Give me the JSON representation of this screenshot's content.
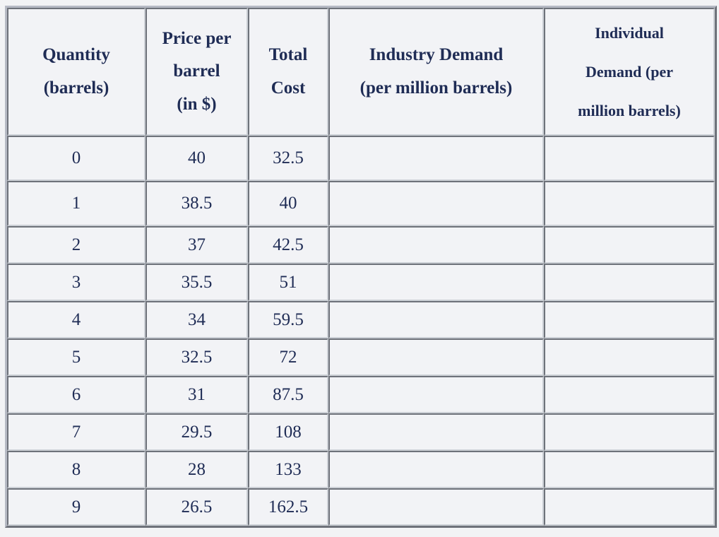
{
  "colors": {
    "page_background": "#f2f3f5",
    "cell_background": "#f2f3f6",
    "text": "#1f2c55",
    "border_dark": "#6e727a",
    "border_light": "#ccd0d6",
    "outer_border_light": "#b6bac4"
  },
  "table": {
    "headers": [
      {
        "id": "quantity",
        "label": "Quantity\n(barrels)"
      },
      {
        "id": "price_per_barrel",
        "label": "Price per\nbarrel\n(in $)"
      },
      {
        "id": "total_cost",
        "label": "Total\nCost"
      },
      {
        "id": "industry_demand",
        "label": "Industry Demand\n(per million barrels)"
      },
      {
        "id": "individual_demand",
        "label": "Individual\nDemand (per\nmillion barrels)"
      }
    ],
    "rows": [
      {
        "quantity": "0",
        "price_per_barrel": "40",
        "total_cost": "32.5",
        "industry_demand": "",
        "individual_demand": ""
      },
      {
        "quantity": "1",
        "price_per_barrel": "38.5",
        "total_cost": "40",
        "industry_demand": "",
        "individual_demand": ""
      },
      {
        "quantity": "2",
        "price_per_barrel": "37",
        "total_cost": "42.5",
        "industry_demand": "",
        "individual_demand": ""
      },
      {
        "quantity": "3",
        "price_per_barrel": "35.5",
        "total_cost": "51",
        "industry_demand": "",
        "individual_demand": ""
      },
      {
        "quantity": "4",
        "price_per_barrel": "34",
        "total_cost": "59.5",
        "industry_demand": "",
        "individual_demand": ""
      },
      {
        "quantity": "5",
        "price_per_barrel": "32.5",
        "total_cost": "72",
        "industry_demand": "",
        "individual_demand": ""
      },
      {
        "quantity": "6",
        "price_per_barrel": "31",
        "total_cost": "87.5",
        "industry_demand": "",
        "individual_demand": ""
      },
      {
        "quantity": "7",
        "price_per_barrel": "29.5",
        "total_cost": "108",
        "industry_demand": "",
        "individual_demand": ""
      },
      {
        "quantity": "8",
        "price_per_barrel": "28",
        "total_cost": "133",
        "industry_demand": "",
        "individual_demand": ""
      },
      {
        "quantity": "9",
        "price_per_barrel": "26.5",
        "total_cost": "162.5",
        "industry_demand": "",
        "individual_demand": ""
      }
    ]
  }
}
